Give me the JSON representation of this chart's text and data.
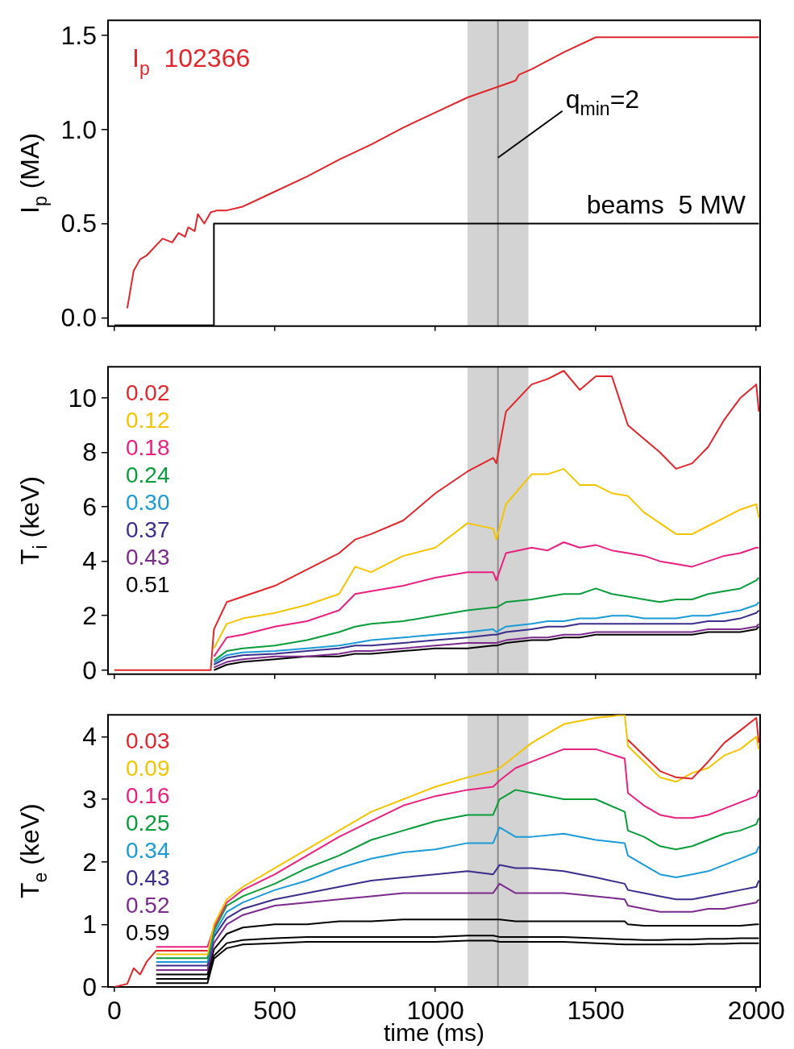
{
  "chart_data": [
    {
      "type": "line",
      "ylabel": "I$_{p}$ (MA)",
      "xlim": [
        -20,
        2012
      ],
      "xticks": [
        0,
        500,
        1000,
        1500,
        2000
      ],
      "ylim": [
        -0.045,
        1.58
      ],
      "yticks": [
        {
          "value": 0,
          "label": "0.0"
        },
        {
          "value": 0.5,
          "label": "0.5"
        },
        {
          "value": 1,
          "label": "1.0"
        },
        {
          "value": 1.5,
          "label": "1.5"
        }
      ],
      "tick_labels": "y",
      "marker": "none",
      "line_style": "solid",
      "series": [
        {
          "name": "I$_{p}$  102366",
          "color": "#e0262b",
          "x": [
            40,
            60,
            80,
            100,
            150,
            180,
            200,
            220,
            230,
            250,
            260,
            280,
            300,
            320,
            350,
            400,
            500,
            600,
            700,
            800,
            900,
            1000,
            1100,
            1200,
            1250,
            1260,
            1300,
            1400,
            1500,
            1600,
            1700,
            1800,
            1900,
            2000,
            2008
          ],
          "values": [
            0.05,
            0.25,
            0.31,
            0.33,
            0.42,
            0.4,
            0.45,
            0.43,
            0.48,
            0.46,
            0.55,
            0.5,
            0.56,
            0.57,
            0.57,
            0.59,
            0.67,
            0.75,
            0.84,
            0.92,
            1.01,
            1.09,
            1.17,
            1.23,
            1.26,
            1.29,
            1.32,
            1.41,
            1.49,
            1.49,
            1.49,
            1.49,
            1.49,
            1.49,
            1.49
          ]
        },
        {
          "name": "beams  5 MW",
          "color": "#000000",
          "x": [
            0,
            310,
            310,
            2008
          ],
          "values": [
            -0.04,
            -0.04,
            0.5,
            0.5
          ]
        }
      ],
      "bands": [
        {
          "axis": "x",
          "from": 1100,
          "to": 1290,
          "color": "#d3d3d3"
        }
      ],
      "ref_lines": [
        {
          "axis": "x",
          "value": 1195,
          "color": "#8c8c8c"
        }
      ],
      "annotations": [
        {
          "text": "q$_{min}$=2",
          "x": 1195,
          "y": 0.85
        }
      ]
    },
    {
      "type": "line",
      "ylabel": "T$_{i}$ (keV)",
      "xlim": [
        -20,
        2012
      ],
      "xticks": [
        0,
        500,
        1000,
        1500,
        2000
      ],
      "ylim": [
        -0.15,
        11.15
      ],
      "yticks": [
        0,
        2,
        4,
        6,
        8,
        10
      ],
      "tick_labels": "y",
      "marker": "none",
      "line_style": "solid",
      "legend": "top left",
      "x": [
        0,
        300,
        310,
        350,
        400,
        500,
        600,
        700,
        750,
        800,
        900,
        1000,
        1100,
        1180,
        1190,
        1220,
        1300,
        1350,
        1400,
        1450,
        1500,
        1550,
        1600,
        1650,
        1700,
        1750,
        1800,
        1850,
        1900,
        1950,
        2000,
        2008
      ],
      "series": [
        {
          "name": "0.02",
          "color": "#e0262b",
          "values": [
            0,
            0,
            1.5,
            2.5,
            2.7,
            3.1,
            3.7,
            4.3,
            4.8,
            5.0,
            5.5,
            6.5,
            7.3,
            7.8,
            7.6,
            9.5,
            10.5,
            10.7,
            11.0,
            10.3,
            10.8,
            10.8,
            9.0,
            8.5,
            8.0,
            7.4,
            7.6,
            8.2,
            9.2,
            10.0,
            10.5,
            9.5
          ]
        },
        {
          "name": "0.12",
          "color": "#f5c400",
          "values": [
            null,
            null,
            0.8,
            1.7,
            1.9,
            2.1,
            2.4,
            2.8,
            3.8,
            3.6,
            4.2,
            4.5,
            5.4,
            5.2,
            4.8,
            6.1,
            7.2,
            7.2,
            7.4,
            6.8,
            6.8,
            6.5,
            6.4,
            5.8,
            5.4,
            5.0,
            5.0,
            5.3,
            5.6,
            5.9,
            6.1,
            5.6
          ]
        },
        {
          "name": "0.18",
          "color": "#e8207f",
          "values": [
            null,
            null,
            0.5,
            1.2,
            1.3,
            1.6,
            1.8,
            2.2,
            2.8,
            2.9,
            3.1,
            3.4,
            3.6,
            3.6,
            3.3,
            4.3,
            4.5,
            4.4,
            4.7,
            4.5,
            4.6,
            4.4,
            4.3,
            4.2,
            4.0,
            3.9,
            3.8,
            4.0,
            4.2,
            4.3,
            4.5,
            4.5
          ]
        },
        {
          "name": "0.24",
          "color": "#0a9b3a",
          "values": [
            null,
            null,
            0.35,
            0.7,
            0.8,
            0.9,
            1.1,
            1.4,
            1.6,
            1.7,
            1.8,
            2.0,
            2.2,
            2.3,
            2.3,
            2.5,
            2.6,
            2.7,
            2.8,
            2.8,
            3.0,
            2.8,
            2.7,
            2.6,
            2.5,
            2.6,
            2.6,
            2.8,
            2.9,
            3.0,
            3.3,
            3.4
          ]
        },
        {
          "name": "0.30",
          "color": "#1a9ad6",
          "values": [
            null,
            null,
            0.28,
            0.55,
            0.65,
            0.7,
            0.8,
            0.9,
            1.0,
            1.1,
            1.2,
            1.3,
            1.4,
            1.5,
            1.4,
            1.6,
            1.7,
            1.8,
            1.8,
            1.9,
            1.9,
            2.0,
            2.0,
            1.9,
            1.9,
            1.9,
            2.0,
            2.0,
            2.1,
            2.2,
            2.4,
            2.5
          ]
        },
        {
          "name": "0.37",
          "color": "#3b2d8c",
          "values": [
            null,
            null,
            0.2,
            0.45,
            0.55,
            0.6,
            0.7,
            0.8,
            0.9,
            0.9,
            1.0,
            1.1,
            1.2,
            1.3,
            1.3,
            1.4,
            1.5,
            1.6,
            1.6,
            1.7,
            1.7,
            1.7,
            1.7,
            1.7,
            1.7,
            1.7,
            1.7,
            1.8,
            1.8,
            1.9,
            2.1,
            2.2
          ]
        },
        {
          "name": "0.43",
          "color": "#7b2a8c",
          "values": [
            null,
            null,
            0.1,
            0.3,
            0.4,
            0.5,
            0.5,
            0.6,
            0.7,
            0.7,
            0.8,
            0.9,
            1.0,
            1.0,
            1.0,
            1.1,
            1.2,
            1.2,
            1.3,
            1.3,
            1.4,
            1.4,
            1.4,
            1.4,
            1.4,
            1.4,
            1.4,
            1.5,
            1.5,
            1.5,
            1.6,
            1.7
          ]
        },
        {
          "name": "0.51",
          "color": "#000000",
          "values": [
            null,
            null,
            0.0,
            0.2,
            0.3,
            0.4,
            0.5,
            0.5,
            0.6,
            0.6,
            0.7,
            0.8,
            0.8,
            0.9,
            0.9,
            1.0,
            1.1,
            1.1,
            1.2,
            1.2,
            1.3,
            1.3,
            1.3,
            1.3,
            1.3,
            1.3,
            1.3,
            1.4,
            1.4,
            1.4,
            1.5,
            1.6
          ]
        }
      ],
      "bands": [
        {
          "axis": "x",
          "from": 1100,
          "to": 1290,
          "color": "#d3d3d3"
        }
      ],
      "ref_lines": [
        {
          "axis": "x",
          "value": 1195,
          "color": "#8c8c8c"
        }
      ]
    },
    {
      "type": "line",
      "xlabel": "time (ms)",
      "ylabel": "T$_{e}$ (keV)",
      "xlim": [
        -20,
        2012
      ],
      "xticks": [
        0,
        500,
        1000,
        1500,
        2000
      ],
      "ylim": [
        0,
        4.35
      ],
      "yticks": [
        0,
        1,
        2,
        3,
        4
      ],
      "marker": "none",
      "line_style": "solid",
      "legend": "top left",
      "x": [
        0,
        40,
        60,
        80,
        100,
        130,
        160,
        200,
        250,
        290,
        310,
        350,
        400,
        500,
        600,
        700,
        800,
        900,
        1000,
        1100,
        1180,
        1200,
        1250,
        1300,
        1400,
        1500,
        1590,
        1600,
        1650,
        1700,
        1750,
        1800,
        1850,
        1900,
        1950,
        2000,
        2008
      ],
      "series": [
        {
          "name": "0.03",
          "color": "#e0262b",
          "values": [
            0,
            0.05,
            0.3,
            0.2,
            0.4,
            0.58,
            0.58,
            0.58,
            0.58,
            0.58,
            null,
            null,
            null,
            null,
            null,
            null,
            null,
            null,
            null,
            null,
            null,
            null,
            null,
            null,
            null,
            null,
            null,
            3.95,
            3.7,
            3.45,
            3.35,
            3.33,
            3.6,
            3.9,
            4.1,
            4.3,
            3.9
          ]
        },
        {
          "name": "0.09",
          "color": "#f5c400",
          "values": [
            null,
            null,
            null,
            null,
            null,
            0.52,
            0.52,
            0.52,
            0.52,
            0.52,
            1.0,
            1.4,
            1.6,
            1.9,
            2.2,
            2.5,
            2.8,
            3.0,
            3.2,
            3.35,
            3.45,
            3.5,
            3.7,
            3.9,
            4.2,
            4.3,
            4.35,
            3.85,
            3.6,
            3.35,
            3.28,
            3.42,
            3.5,
            3.7,
            3.8,
            4.0,
            3.8
          ]
        },
        {
          "name": "0.16",
          "color": "#e8207f",
          "values": [
            null,
            null,
            null,
            null,
            null,
            0.64,
            0.64,
            0.64,
            0.64,
            0.64,
            0.95,
            1.35,
            1.55,
            1.8,
            2.1,
            2.4,
            2.65,
            2.9,
            3.05,
            3.15,
            3.2,
            3.3,
            3.5,
            3.6,
            3.8,
            3.8,
            3.65,
            3.1,
            2.9,
            2.75,
            2.7,
            2.7,
            2.75,
            2.85,
            2.95,
            3.05,
            3.15
          ]
        },
        {
          "name": "0.25",
          "color": "#0a9b3a",
          "values": [
            null,
            null,
            null,
            null,
            null,
            0.46,
            0.46,
            0.46,
            0.46,
            0.46,
            0.9,
            1.3,
            1.45,
            1.65,
            1.9,
            2.1,
            2.35,
            2.5,
            2.65,
            2.75,
            2.75,
            3.0,
            3.15,
            3.1,
            3.0,
            3.0,
            2.8,
            2.5,
            2.4,
            2.25,
            2.2,
            2.25,
            2.35,
            2.45,
            2.5,
            2.6,
            2.7
          ]
        },
        {
          "name": "0.34",
          "color": "#1a9ad6",
          "values": [
            null,
            null,
            null,
            null,
            null,
            0.4,
            0.4,
            0.4,
            0.4,
            0.4,
            0.85,
            1.2,
            1.35,
            1.55,
            1.7,
            1.9,
            2.05,
            2.15,
            2.2,
            2.3,
            2.3,
            2.55,
            2.4,
            2.4,
            2.45,
            2.35,
            2.3,
            2.1,
            1.95,
            1.8,
            1.75,
            1.8,
            1.85,
            1.95,
            2.05,
            2.15,
            2.25
          ]
        },
        {
          "name": "0.43",
          "color": "#3b2d8c",
          "values": [
            null,
            null,
            null,
            null,
            null,
            0.34,
            0.34,
            0.34,
            0.34,
            0.34,
            0.8,
            1.1,
            1.25,
            1.4,
            1.5,
            1.6,
            1.7,
            1.75,
            1.8,
            1.85,
            1.8,
            1.95,
            1.9,
            1.9,
            1.85,
            1.75,
            1.65,
            1.55,
            1.5,
            1.45,
            1.4,
            1.4,
            1.45,
            1.5,
            1.55,
            1.6,
            1.7
          ]
        },
        {
          "name": "0.52",
          "color": "#7b2a8c",
          "values": [
            null,
            null,
            null,
            null,
            null,
            0.27,
            0.27,
            0.27,
            0.27,
            0.27,
            0.7,
            1.0,
            1.15,
            1.3,
            1.35,
            1.4,
            1.45,
            1.5,
            1.5,
            1.5,
            1.5,
            1.65,
            1.5,
            1.5,
            1.5,
            1.45,
            1.4,
            1.3,
            1.25,
            1.2,
            1.2,
            1.2,
            1.25,
            1.25,
            1.3,
            1.35,
            1.4
          ]
        },
        {
          "name": "0.59",
          "color": "#000000",
          "values": [
            null,
            null,
            null,
            null,
            null,
            0.2,
            0.2,
            0.2,
            0.2,
            0.2,
            0.6,
            0.85,
            0.95,
            1.0,
            1.0,
            1.05,
            1.05,
            1.08,
            1.08,
            1.08,
            1.08,
            1.08,
            1.05,
            1.05,
            1.05,
            1.05,
            1.05,
            1.0,
            0.98,
            0.98,
            0.98,
            0.98,
            0.98,
            0.98,
            0.98,
            1.0,
            1.0
          ]
        },
        {
          "color": "#000000",
          "values": [
            null,
            null,
            null,
            null,
            null,
            0.13,
            0.13,
            0.13,
            0.13,
            0.13,
            0.5,
            0.7,
            0.75,
            0.78,
            0.8,
            0.8,
            0.8,
            0.8,
            0.8,
            0.82,
            0.82,
            0.8,
            0.8,
            0.8,
            0.8,
            0.78,
            0.76,
            0.76,
            0.75,
            0.75,
            0.76,
            0.76,
            0.77,
            0.77,
            0.78,
            0.78,
            0.78
          ]
        },
        {
          "color": "#000000",
          "values": [
            null,
            null,
            null,
            null,
            null,
            0.06,
            0.06,
            0.06,
            0.06,
            0.06,
            0.45,
            0.62,
            0.68,
            0.7,
            0.72,
            0.72,
            0.72,
            0.72,
            0.72,
            0.74,
            0.74,
            0.72,
            0.72,
            0.72,
            0.72,
            0.7,
            0.68,
            0.68,
            0.68,
            0.68,
            0.68,
            0.68,
            0.69,
            0.69,
            0.7,
            0.7,
            0.7
          ]
        }
      ],
      "bands": [
        {
          "axis": "x",
          "from": 1100,
          "to": 1290,
          "color": "#d3d3d3"
        }
      ],
      "ref_lines": [
        {
          "axis": "x",
          "value": 1195,
          "color": "#8c8c8c"
        }
      ]
    }
  ]
}
